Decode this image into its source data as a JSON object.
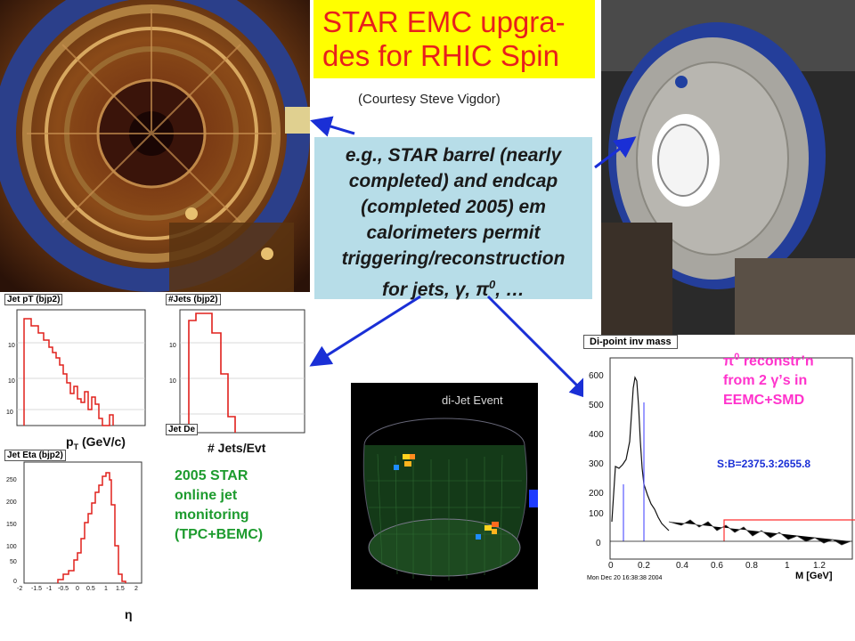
{
  "title": "STAR EMC upgra-\ndes for RHIC Spin",
  "courtesy": "(Courtesy Steve Vigdor)",
  "callout": {
    "line1": "e.g., STAR barrel (nearly",
    "line2": "completed) and endcap",
    "line3": "(completed 2005) em",
    "line4": "calorimeters permit",
    "line5": "triggering/reconstruction",
    "line6": "for jets, γ, π",
    "line6_sup": "0",
    "line6_end": ", …"
  },
  "plots": {
    "jet_pt": {
      "title": "Jet pT (bjp2)",
      "xlabel_main": "p",
      "xlabel_sub": "T",
      "xlabel_rest": " (GeV/c)"
    },
    "jets_per_evt": {
      "title": "#Jets (bjp2)",
      "xlabel": "# Jets/Evt",
      "tab": "Jet De"
    },
    "jet_eta": {
      "title": "Jet Eta (bjp2)",
      "xlabel": "η",
      "yticks": [
        "250",
        "200",
        "150",
        "100",
        "50",
        "0"
      ],
      "xticks": [
        "-2",
        "-1.5",
        "-1",
        "-0.5",
        "0",
        "0.5",
        "1",
        "1.5",
        "2"
      ]
    },
    "dipoint": {
      "title": "Di-point inv mass",
      "ratio": "S:B=2375.3:2655.8",
      "xlabel": "M [GeV]",
      "yticks": [
        "600",
        "500",
        "400",
        "300",
        "200",
        "100",
        "0"
      ],
      "xticks": [
        "0",
        "0.2",
        "0.4",
        "0.6",
        "0.8",
        "1",
        "1.2"
      ],
      "date": "Mon Dec 20 16:38:38 2004"
    }
  },
  "dijet_label": "di-Jet Event",
  "monitoring_note": {
    "line1": "2005 STAR",
    "line2": "online jet",
    "line3": "monitoring",
    "line4": "(TPC+BEMC)"
  },
  "pi0_note": {
    "sym": "π",
    "sup": "0",
    "line1_rest": " reconstr’n",
    "line2": "from 2 γ’s in",
    "line3": "EEMC+SMD"
  },
  "colors": {
    "title_bg": "#ffff00",
    "title_text": "#e8201c",
    "callout_bg": "#b7dde8",
    "arrow": "#1a2fd6",
    "hist": "#e0201c",
    "green_text": "#1d9b2e",
    "magenta_text": "#ff33cc"
  }
}
